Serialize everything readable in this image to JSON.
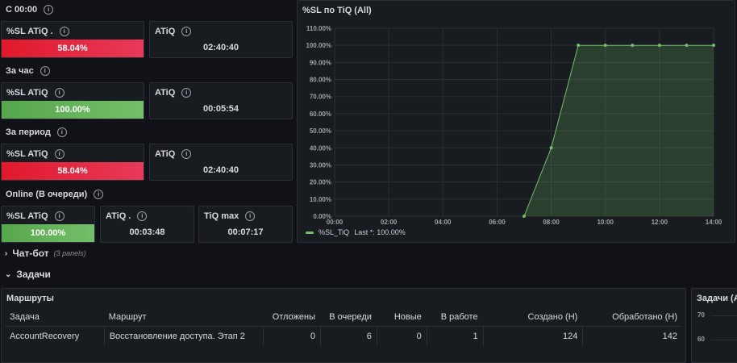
{
  "sections": {
    "since_midnight": "С 00:00",
    "per_hour": "За час",
    "per_period": "За период",
    "online": "Online (В очереди)"
  },
  "stats": {
    "s1": {
      "sl_title": "%SL ATiQ .",
      "sl_value": "58.04%",
      "atiq_title": "ATiQ",
      "atiq_value": "02:40:40",
      "sl_fraction": 0.5804
    },
    "s2": {
      "sl_title": "%SL ATiQ",
      "sl_value": "100.00%",
      "atiq_title": "ATiQ",
      "atiq_value": "00:05:54",
      "sl_fraction": 1.0
    },
    "s3": {
      "sl_title": "%SL ATiQ",
      "sl_value": "58.04%",
      "atiq_title": "ATiQ",
      "atiq_value": "02:40:40",
      "sl_fraction": 0.5804
    },
    "online": {
      "sl_title": "%SL ATiQ",
      "sl_value": "100.00%",
      "atiq_title": "ATiQ .",
      "atiq_value": "00:03:48",
      "tiq_title": "TiQ max",
      "tiq_value": "00:07:17",
      "sl_fraction": 1.0
    }
  },
  "colors": {
    "bad": "#e0192a",
    "good": "#73bf69",
    "panel_bg": "#181b1f",
    "page_bg": "#111217"
  },
  "chart_panel": {
    "title": "%SL по TiQ (All)"
  },
  "chart_data": {
    "type": "area",
    "title": "%SL по TiQ (All)",
    "xlabel": "",
    "ylabel": "",
    "x_ticks": [
      "00:00",
      "02:00",
      "04:00",
      "06:00",
      "08:00",
      "10:00",
      "12:00",
      "14:00"
    ],
    "xlim": [
      0,
      14
    ],
    "y_ticks": [
      "0.00%",
      "10.00%",
      "20.00%",
      "30.00%",
      "40.00%",
      "50.00%",
      "60.00%",
      "70.00%",
      "80.00%",
      "90.00%",
      "100.00%",
      "110.00%"
    ],
    "ylim": [
      0,
      110
    ],
    "grid": true,
    "series": [
      {
        "name": "%SL_TiQ",
        "color": "#73bf69",
        "x": [
          "07:00",
          "08:00",
          "09:00",
          "10:00",
          "11:00",
          "12:00",
          "13:00",
          "14:00"
        ],
        "x_hours": [
          7,
          8,
          9,
          10,
          11,
          12,
          13,
          14
        ],
        "values": [
          0,
          40,
          100,
          100,
          100,
          100,
          100,
          100
        ]
      }
    ],
    "legend": {
      "position": "bottom-left",
      "label": "%SL_TiQ",
      "last_label": "Last *: 100.00%"
    }
  },
  "chatbot": {
    "title": "Чат-бот",
    "subtitle": "(3 panels)"
  },
  "tasks_row": {
    "title": "Задачи"
  },
  "routes_table": {
    "title": "Маршруты",
    "columns": [
      "Задача",
      "Маршрут",
      "Отложены",
      "В очереди",
      "Новые",
      "В работе",
      "Создано (Н)",
      "Обработано (Н)"
    ],
    "rows": [
      [
        "AccountRecovery",
        "Восстановление доступа. Этап 2",
        "0",
        "6",
        "0",
        "1",
        "124",
        "142"
      ]
    ]
  },
  "tasks_panel": {
    "title": "Задачи (All)",
    "y_ticks": [
      "70",
      "60"
    ]
  }
}
